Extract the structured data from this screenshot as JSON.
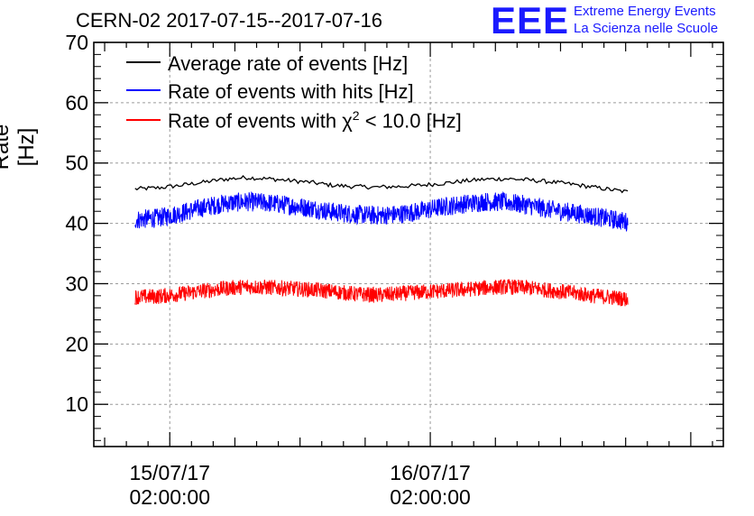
{
  "header": {
    "title": "CERN-02 2017-07-15--2017-07-16",
    "logo_mark": "EEE",
    "logo_line1": "Extreme Energy Events",
    "logo_line2": "La Scienza nelle Scuole"
  },
  "colors": {
    "average": "#000000",
    "hits": "#0000ff",
    "chi2": "#ff0000",
    "grid": "#9a9a9a",
    "logo": "#1a1aff"
  },
  "legend": {
    "average_label": "Average rate of events [Hz]",
    "hits_label": "Rate of events with hits [Hz]",
    "chi2_prefix": "Rate of events with ",
    "chi2_symbol": "χ",
    "chi2_power": "2",
    "chi2_suffix": " < 10.0 [Hz]"
  },
  "chart_data": {
    "type": "line",
    "title": "CERN-02 2017-07-15--2017-07-16",
    "xlabel": "",
    "ylabel": "Rate [Hz]",
    "x_unit": "hours since 2017-07-15 00:00",
    "xlim": [
      -5,
      53
    ],
    "ylim": [
      3,
      70
    ],
    "yticks": [
      10,
      20,
      30,
      40,
      50,
      60,
      70
    ],
    "xticks": [
      {
        "x": 2,
        "label_date": "15/07/17",
        "label_time": "02:00:00"
      },
      {
        "x": 26,
        "label_date": "16/07/17",
        "label_time": "02:00:00"
      }
    ],
    "grid": true,
    "legend_position": "top-left",
    "series": [
      {
        "name": "Average rate of events [Hz]",
        "color": "#000000",
        "x": [
          -1.2,
          1,
          3,
          5,
          7,
          9,
          11,
          13,
          15,
          17,
          19,
          21,
          23,
          25,
          27,
          29,
          31,
          33,
          35,
          37,
          39,
          41,
          43,
          44.2
        ],
        "y": [
          45.7,
          45.9,
          46.3,
          46.8,
          47.3,
          47.6,
          47.4,
          47.1,
          46.8,
          46.3,
          46.1,
          46.0,
          46.1,
          46.3,
          46.6,
          47.0,
          47.3,
          47.4,
          47.2,
          46.9,
          46.5,
          46.0,
          45.5,
          45.2
        ],
        "noise": 0.35
      },
      {
        "name": "Rate of events with hits [Hz]",
        "color": "#0000ff",
        "x": [
          -1.2,
          1,
          3,
          5,
          7,
          9,
          11,
          13,
          15,
          17,
          19,
          21,
          23,
          25,
          27,
          29,
          31,
          33,
          35,
          37,
          39,
          41,
          43,
          44.2
        ],
        "y": [
          40.6,
          40.9,
          41.7,
          42.6,
          43.3,
          43.6,
          43.4,
          43.0,
          42.5,
          41.9,
          41.5,
          41.3,
          41.5,
          42.0,
          42.7,
          43.2,
          43.6,
          43.5,
          43.0,
          42.3,
          41.8,
          41.2,
          40.6,
          40.2
        ],
        "noise": 1.6
      },
      {
        "name": "Rate of events with χ2 < 10.0 [Hz]",
        "color": "#ff0000",
        "x": [
          -1.2,
          1,
          3,
          5,
          7,
          9,
          11,
          13,
          15,
          17,
          19,
          21,
          23,
          25,
          27,
          29,
          31,
          33,
          35,
          37,
          39,
          41,
          43,
          44.2
        ],
        "y": [
          27.8,
          27.9,
          28.3,
          28.8,
          29.2,
          29.5,
          29.4,
          29.2,
          29.0,
          28.7,
          28.3,
          28.1,
          28.3,
          28.6,
          28.8,
          29.0,
          29.3,
          29.5,
          29.3,
          28.9,
          28.5,
          28.0,
          27.7,
          27.4
        ],
        "noise": 1.3
      }
    ]
  }
}
